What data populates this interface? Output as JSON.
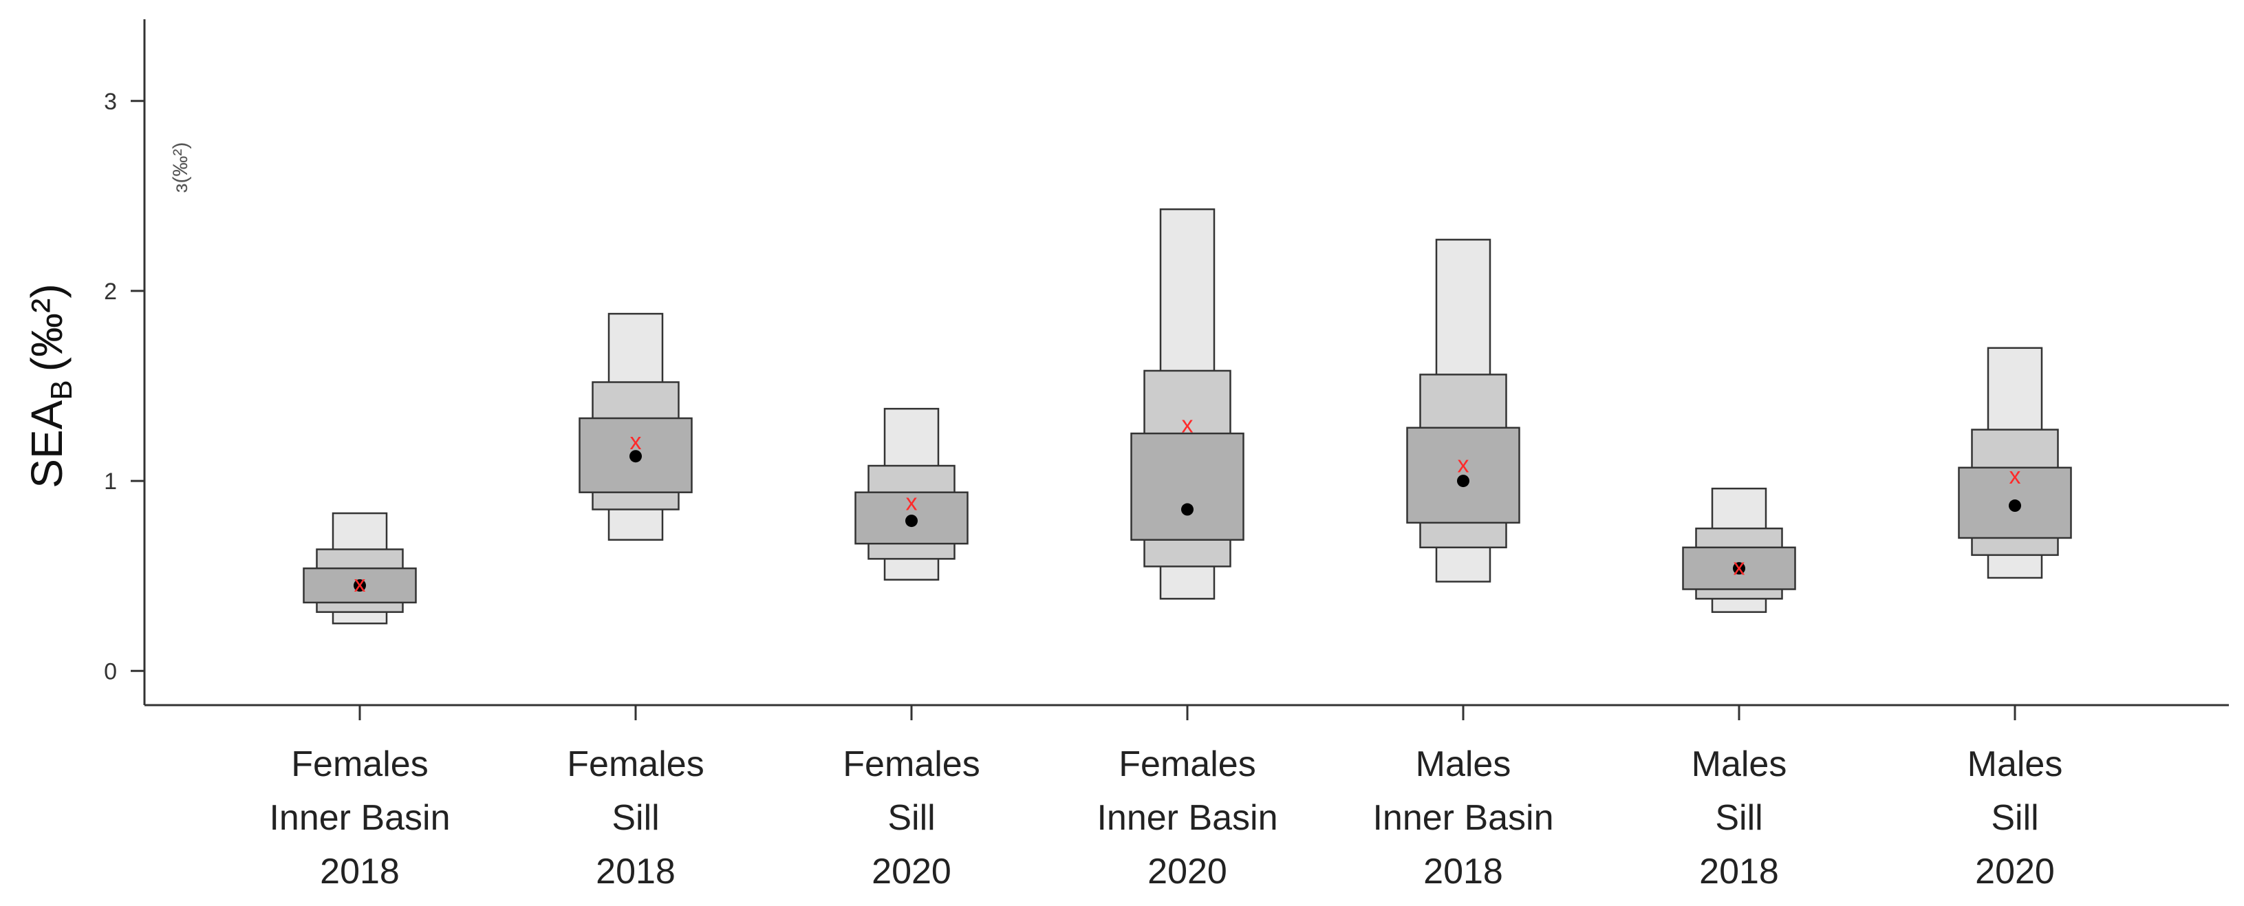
{
  "chart_data": {
    "type": "box",
    "ylabel_main": "SEA",
    "ylabel_sub": "B",
    "ylabel_unit": "(‰²)",
    "ghost_label": "ɜ(‰²)",
    "ylim": [
      -0.18,
      3.43
    ],
    "yticks": [
      0,
      1,
      2,
      3
    ],
    "grid": false,
    "legend": "none",
    "colors": {
      "band_outer": "#e8e8e8",
      "band_middle": "#cccccc",
      "band_inner": "#b0b0b0",
      "mode_point": "#000000",
      "ml_marker": "#ff2a2a",
      "axis": "#333333"
    },
    "categories": [
      {
        "lines": [
          "Females",
          "Inner Basin",
          "2018"
        ],
        "outer": [
          0.25,
          0.83
        ],
        "middle": [
          0.31,
          0.64
        ],
        "inner": [
          0.36,
          0.54
        ],
        "mode": 0.45,
        "ml": 0.46
      },
      {
        "lines": [
          "Females",
          "Sill",
          "2018"
        ],
        "outer": [
          0.69,
          1.88
        ],
        "middle": [
          0.85,
          1.52
        ],
        "inner": [
          0.94,
          1.33
        ],
        "mode": 1.13,
        "ml": 1.21
      },
      {
        "lines": [
          "Females",
          "Sill",
          "2020"
        ],
        "outer": [
          0.48,
          1.38
        ],
        "middle": [
          0.59,
          1.08
        ],
        "inner": [
          0.67,
          0.94
        ],
        "mode": 0.79,
        "ml": 0.89
      },
      {
        "lines": [
          "Females",
          "Inner Basin",
          "2020"
        ],
        "outer": [
          0.38,
          2.43
        ],
        "middle": [
          0.55,
          1.58
        ],
        "inner": [
          0.69,
          1.25
        ],
        "mode": 0.85,
        "ml": 1.3
      },
      {
        "lines": [
          "Males",
          "Inner Basin",
          "2018"
        ],
        "outer": [
          0.47,
          2.27
        ],
        "middle": [
          0.65,
          1.56
        ],
        "inner": [
          0.78,
          1.28
        ],
        "mode": 1.0,
        "ml": 1.09
      },
      {
        "lines": [
          "Males",
          "Sill",
          "2018"
        ],
        "outer": [
          0.31,
          0.96
        ],
        "middle": [
          0.38,
          0.75
        ],
        "inner": [
          0.43,
          0.65
        ],
        "mode": 0.54,
        "ml": 0.55
      },
      {
        "lines": [
          "Males",
          "Sill",
          "2020"
        ],
        "outer": [
          0.49,
          1.7
        ],
        "middle": [
          0.61,
          1.27
        ],
        "inner": [
          0.7,
          1.07
        ],
        "mode": 0.87,
        "ml": 1.03
      }
    ]
  }
}
